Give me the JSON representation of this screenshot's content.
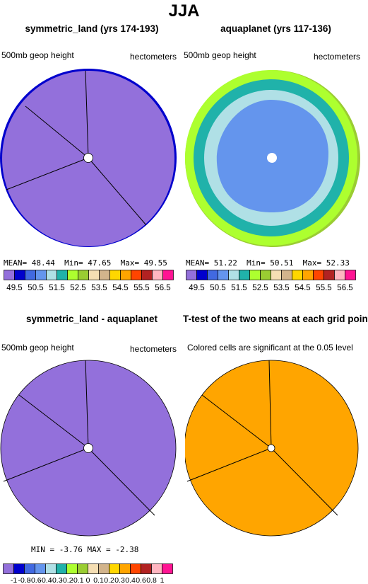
{
  "title": "JJA",
  "colors": {
    "palette": [
      "#9370DB",
      "#0000CD",
      "#4169E1",
      "#6495ED",
      "#B0E0E6",
      "#20B2AA",
      "#ADFF2F",
      "#9ACD32",
      "#F5DEB3",
      "#D2B48C",
      "#FFD700",
      "#FFA500",
      "#FF4500",
      "#B22222",
      "#FFB6C1",
      "#FF1493"
    ]
  },
  "chart_data": [
    {
      "type": "heatmap",
      "title": "symmetric_land (yrs 174-193)",
      "left_label": "500mb geop height",
      "right_label": "hectometers",
      "stats": {
        "mean_label": "MEAN=",
        "mean": "48.44",
        "min_label": "Min=",
        "min": "47.65",
        "max_label": "Max=",
        "max": "49.55"
      },
      "colorbar_labels": [
        "49.5",
        "50.5",
        "51.5",
        "52.5",
        "53.5",
        "54.5",
        "55.5",
        "56.5"
      ]
    },
    {
      "type": "heatmap",
      "title": "aquaplanet (yrs 117-136)",
      "left_label": "500mb geop height",
      "right_label": "hectometers",
      "stats": {
        "mean_label": "MEAN=",
        "mean": "51.22",
        "min_label": "Min=",
        "min": "50.51",
        "max_label": "Max=",
        "max": "52.33"
      },
      "colorbar_labels": [
        "49.5",
        "50.5",
        "51.5",
        "52.5",
        "53.5",
        "54.5",
        "55.5",
        "56.5"
      ]
    },
    {
      "type": "heatmap",
      "title": "symmetric_land - aquaplanet",
      "left_label": "500mb geop height",
      "right_label": "hectometers",
      "stats": {
        "min_label": "MIN =",
        "min": "-3.76",
        "max_label": "MAX =",
        "max": "-2.38"
      },
      "colorbar_labels": [
        "-1",
        "-0.8",
        "-0.6",
        "-0.4",
        "-0.3",
        "-0.2",
        "-0.1",
        "0",
        "0.1",
        "0.2",
        "0.3",
        "0.4",
        "0.6",
        "0.8",
        "1"
      ]
    },
    {
      "type": "heatmap",
      "title": "T-test of the two means at each grid point",
      "left_label": "Colored cells are significant at the 0.05 level"
    }
  ]
}
